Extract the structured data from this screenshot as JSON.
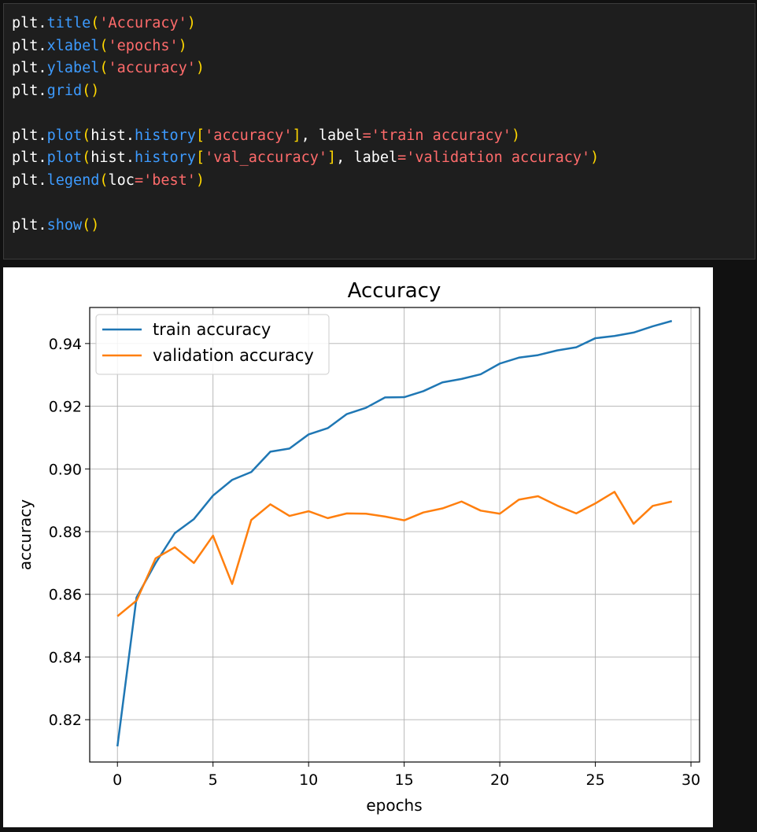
{
  "code": {
    "lines": [
      [
        {
          "t": "plt",
          "c": "obj"
        },
        {
          "t": ".",
          "c": "plain"
        },
        {
          "t": "title",
          "c": "fn"
        },
        {
          "t": "(",
          "c": "p"
        },
        {
          "t": "'Accuracy'",
          "c": "str"
        },
        {
          "t": ")",
          "c": "p"
        }
      ],
      [
        {
          "t": "plt",
          "c": "obj"
        },
        {
          "t": ".",
          "c": "plain"
        },
        {
          "t": "xlabel",
          "c": "fn"
        },
        {
          "t": "(",
          "c": "p"
        },
        {
          "t": "'epochs'",
          "c": "str"
        },
        {
          "t": ")",
          "c": "p"
        }
      ],
      [
        {
          "t": "plt",
          "c": "obj"
        },
        {
          "t": ".",
          "c": "plain"
        },
        {
          "t": "ylabel",
          "c": "fn"
        },
        {
          "t": "(",
          "c": "p"
        },
        {
          "t": "'accuracy'",
          "c": "str"
        },
        {
          "t": ")",
          "c": "p"
        }
      ],
      [
        {
          "t": "plt",
          "c": "obj"
        },
        {
          "t": ".",
          "c": "plain"
        },
        {
          "t": "grid",
          "c": "fn"
        },
        {
          "t": "()",
          "c": "p"
        }
      ],
      [],
      [
        {
          "t": "plt",
          "c": "obj"
        },
        {
          "t": ".",
          "c": "plain"
        },
        {
          "t": "plot",
          "c": "fn"
        },
        {
          "t": "(",
          "c": "p"
        },
        {
          "t": "hist",
          "c": "obj"
        },
        {
          "t": ".",
          "c": "plain"
        },
        {
          "t": "history",
          "c": "fn"
        },
        {
          "t": "[",
          "c": "p"
        },
        {
          "t": "'accuracy'",
          "c": "str"
        },
        {
          "t": "]",
          "c": "p"
        },
        {
          "t": ", label",
          "c": "plain"
        },
        {
          "t": "=",
          "c": "eq"
        },
        {
          "t": "'train accuracy'",
          "c": "str"
        },
        {
          "t": ")",
          "c": "p"
        }
      ],
      [
        {
          "t": "plt",
          "c": "obj"
        },
        {
          "t": ".",
          "c": "plain"
        },
        {
          "t": "plot",
          "c": "fn"
        },
        {
          "t": "(",
          "c": "p"
        },
        {
          "t": "hist",
          "c": "obj"
        },
        {
          "t": ".",
          "c": "plain"
        },
        {
          "t": "history",
          "c": "fn"
        },
        {
          "t": "[",
          "c": "p"
        },
        {
          "t": "'val_accuracy'",
          "c": "str"
        },
        {
          "t": "]",
          "c": "p"
        },
        {
          "t": ", label",
          "c": "plain"
        },
        {
          "t": "=",
          "c": "eq"
        },
        {
          "t": "'validation accuracy'",
          "c": "str"
        },
        {
          "t": ")",
          "c": "p"
        }
      ],
      [
        {
          "t": "plt",
          "c": "obj"
        },
        {
          "t": ".",
          "c": "plain"
        },
        {
          "t": "legend",
          "c": "fn"
        },
        {
          "t": "(",
          "c": "p"
        },
        {
          "t": "loc",
          "c": "plain"
        },
        {
          "t": "=",
          "c": "eq"
        },
        {
          "t": "'best'",
          "c": "str"
        },
        {
          "t": ")",
          "c": "p"
        }
      ],
      [],
      [
        {
          "t": "plt",
          "c": "obj"
        },
        {
          "t": ".",
          "c": "plain"
        },
        {
          "t": "show",
          "c": "fn"
        },
        {
          "t": "()",
          "c": "p"
        }
      ]
    ]
  },
  "chart_data": {
    "type": "line",
    "title": "Accuracy",
    "xlabel": "epochs",
    "ylabel": "accuracy",
    "xlim": [
      -1.45,
      30.45
    ],
    "ylim": [
      0.8065,
      0.9515
    ],
    "xticks": [
      0,
      5,
      10,
      15,
      20,
      25,
      30
    ],
    "yticks": [
      0.82,
      0.84,
      0.86,
      0.88,
      0.9,
      0.92,
      0.94
    ],
    "ytick_labels": [
      "0.82",
      "0.84",
      "0.86",
      "0.88",
      "0.90",
      "0.92",
      "0.94"
    ],
    "grid": true,
    "legend_position": "top-left",
    "x": [
      0,
      1,
      2,
      3,
      4,
      5,
      6,
      7,
      8,
      9,
      10,
      11,
      12,
      13,
      14,
      15,
      16,
      17,
      18,
      19,
      20,
      21,
      22,
      23,
      24,
      25,
      26,
      27,
      28,
      29
    ],
    "series": [
      {
        "name": "train accuracy",
        "color": "#1f77b4",
        "values": [
          0.8115,
          0.859,
          0.87,
          0.8795,
          0.884,
          0.8915,
          0.8965,
          0.899,
          0.9055,
          0.9065,
          0.911,
          0.913,
          0.9175,
          0.9195,
          0.9228,
          0.9229,
          0.9248,
          0.9276,
          0.9287,
          0.9302,
          0.9336,
          0.9355,
          0.9363,
          0.9378,
          0.9388,
          0.9417,
          0.9424,
          0.9435,
          0.9455,
          0.9472
        ]
      },
      {
        "name": "validation accuracy",
        "color": "#ff7f0e",
        "values": [
          0.853,
          0.858,
          0.8715,
          0.875,
          0.87,
          0.8787,
          0.8633,
          0.8837,
          0.8887,
          0.885,
          0.8865,
          0.8843,
          0.8858,
          0.8857,
          0.8848,
          0.8836,
          0.8861,
          0.8874,
          0.8896,
          0.8867,
          0.8857,
          0.8902,
          0.8913,
          0.8883,
          0.8858,
          0.889,
          0.8927,
          0.8825,
          0.8882,
          0.8896
        ]
      }
    ]
  }
}
